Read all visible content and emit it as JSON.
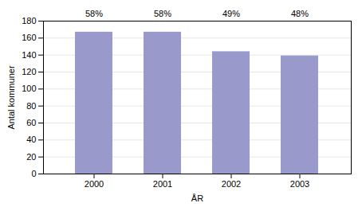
{
  "chart_data": {
    "type": "bar",
    "categories": [
      "2000",
      "2001",
      "2002",
      "2003"
    ],
    "values": [
      167,
      167,
      144,
      139
    ],
    "annotations": [
      "58%",
      "58%",
      "49%",
      "48%"
    ],
    "color": "#9999cc",
    "xlabel": "ÅR",
    "ylabel": "Antal kommuner",
    "ylim": [
      0,
      180
    ],
    "yticks": [
      0,
      20,
      40,
      60,
      80,
      100,
      120,
      140,
      160,
      180
    ],
    "grid": true
  }
}
